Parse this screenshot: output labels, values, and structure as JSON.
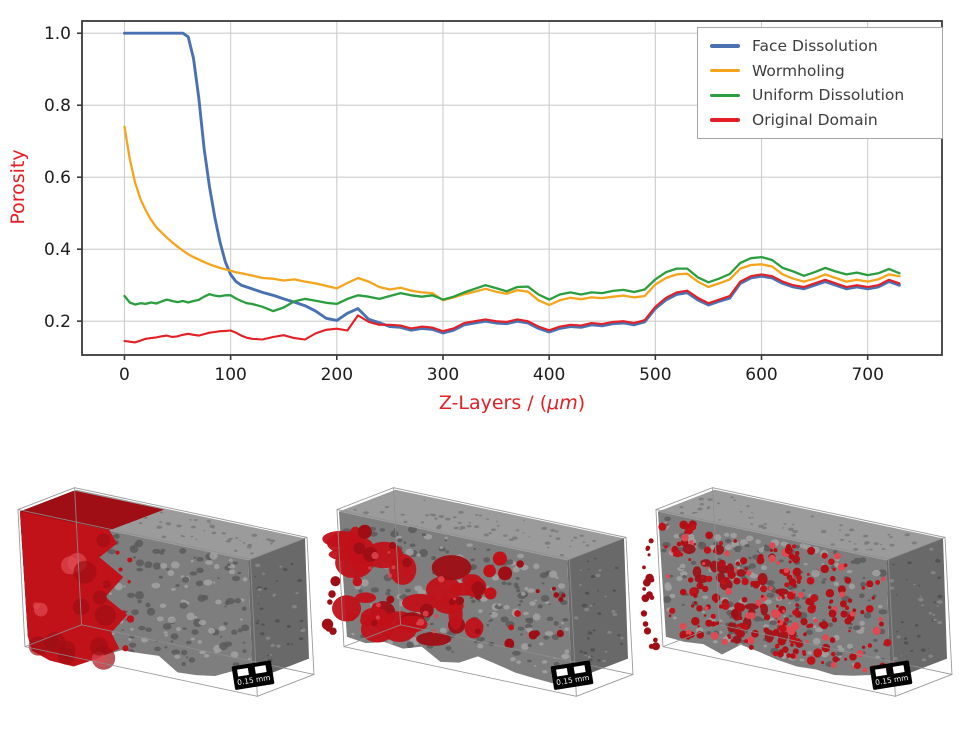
{
  "figure": {
    "description": "Porosity profiles and 3D pore-space renderings for three dissolution regimes"
  },
  "chart_data": {
    "type": "line",
    "title": "",
    "ylabel": "Porosity",
    "xlabel_prefix": "Z-Layers / (",
    "xlabel_italic": "μm",
    "xlabel_suffix": ")",
    "axis_label_color": "#e41f26",
    "xlim": [
      -40,
      770
    ],
    "ylim": [
      0.106,
      1.034
    ],
    "xticks": [
      0,
      100,
      200,
      300,
      400,
      500,
      600,
      700
    ],
    "xtick_labels": [
      "0",
      "100",
      "200",
      "300",
      "400",
      "500",
      "600",
      "700"
    ],
    "yticks": [
      0.2,
      0.4,
      0.6,
      0.8,
      1.0
    ],
    "ytick_labels": [
      "0.2",
      "0.4",
      "0.6",
      "0.8",
      "1.0"
    ],
    "grid": true,
    "legend_position": "upper right",
    "x": [
      0,
      5,
      10,
      15,
      20,
      25,
      30,
      35,
      40,
      45,
      50,
      55,
      60,
      65,
      70,
      75,
      80,
      85,
      90,
      95,
      100,
      105,
      110,
      115,
      120,
      130,
      140,
      150,
      160,
      170,
      180,
      190,
      200,
      210,
      220,
      230,
      240,
      250,
      260,
      270,
      280,
      290,
      300,
      310,
      320,
      330,
      340,
      350,
      360,
      370,
      380,
      390,
      400,
      410,
      420,
      430,
      440,
      450,
      460,
      470,
      480,
      490,
      500,
      510,
      520,
      530,
      540,
      550,
      560,
      570,
      580,
      590,
      600,
      610,
      620,
      630,
      640,
      650,
      660,
      670,
      680,
      690,
      700,
      710,
      720,
      730
    ],
    "series": [
      {
        "name": "Face Dissolution",
        "color": "#4a72b2",
        "values": [
          1.0,
          1.0,
          1.0,
          1.0,
          1.0,
          1.0,
          1.0,
          1.0,
          1.0,
          1.0,
          1.0,
          1.0,
          0.99,
          0.93,
          0.82,
          0.68,
          0.575,
          0.49,
          0.42,
          0.365,
          0.33,
          0.31,
          0.3,
          0.295,
          0.29,
          0.28,
          0.272,
          0.262,
          0.253,
          0.243,
          0.228,
          0.208,
          0.202,
          0.222,
          0.235,
          0.205,
          0.196,
          0.185,
          0.183,
          0.175,
          0.18,
          0.177,
          0.167,
          0.175,
          0.19,
          0.195,
          0.2,
          0.195,
          0.193,
          0.2,
          0.195,
          0.18,
          0.17,
          0.18,
          0.185,
          0.183,
          0.19,
          0.187,
          0.193,
          0.195,
          0.19,
          0.198,
          0.235,
          0.259,
          0.274,
          0.279,
          0.259,
          0.245,
          0.255,
          0.264,
          0.305,
          0.32,
          0.325,
          0.32,
          0.305,
          0.295,
          0.29,
          0.3,
          0.31,
          0.3,
          0.29,
          0.295,
          0.29,
          0.295,
          0.31,
          0.3
        ]
      },
      {
        "name": "Wormholing",
        "color": "#f6a41c",
        "values": [
          0.74,
          0.65,
          0.585,
          0.54,
          0.508,
          0.482,
          0.461,
          0.446,
          0.432,
          0.419,
          0.407,
          0.396,
          0.386,
          0.378,
          0.371,
          0.364,
          0.358,
          0.353,
          0.348,
          0.344,
          0.34,
          0.336,
          0.333,
          0.33,
          0.327,
          0.32,
          0.318,
          0.313,
          0.316,
          0.31,
          0.305,
          0.298,
          0.291,
          0.306,
          0.32,
          0.31,
          0.295,
          0.288,
          0.293,
          0.285,
          0.28,
          0.278,
          0.258,
          0.266,
          0.275,
          0.282,
          0.29,
          0.282,
          0.276,
          0.286,
          0.282,
          0.258,
          0.245,
          0.258,
          0.265,
          0.261,
          0.266,
          0.264,
          0.268,
          0.271,
          0.266,
          0.27,
          0.302,
          0.32,
          0.33,
          0.332,
          0.31,
          0.295,
          0.305,
          0.316,
          0.346,
          0.356,
          0.358,
          0.352,
          0.33,
          0.318,
          0.31,
          0.318,
          0.33,
          0.32,
          0.31,
          0.315,
          0.31,
          0.316,
          0.33,
          0.325
        ]
      },
      {
        "name": "Uniform Dissolution",
        "color": "#2b9e3f",
        "values": [
          0.27,
          0.252,
          0.246,
          0.25,
          0.248,
          0.252,
          0.249,
          0.255,
          0.26,
          0.256,
          0.253,
          0.256,
          0.252,
          0.256,
          0.259,
          0.268,
          0.275,
          0.271,
          0.269,
          0.272,
          0.272,
          0.263,
          0.256,
          0.25,
          0.248,
          0.24,
          0.228,
          0.238,
          0.255,
          0.262,
          0.257,
          0.251,
          0.248,
          0.262,
          0.272,
          0.268,
          0.262,
          0.27,
          0.278,
          0.272,
          0.268,
          0.272,
          0.26,
          0.268,
          0.28,
          0.29,
          0.3,
          0.292,
          0.283,
          0.295,
          0.296,
          0.274,
          0.26,
          0.274,
          0.28,
          0.274,
          0.28,
          0.278,
          0.284,
          0.287,
          0.281,
          0.288,
          0.316,
          0.336,
          0.346,
          0.346,
          0.322,
          0.308,
          0.318,
          0.331,
          0.362,
          0.375,
          0.378,
          0.37,
          0.348,
          0.338,
          0.326,
          0.336,
          0.348,
          0.338,
          0.33,
          0.335,
          0.328,
          0.333,
          0.345,
          0.333
        ]
      },
      {
        "name": "Original Domain",
        "color": "#e41f26",
        "values": [
          0.145,
          0.143,
          0.141,
          0.146,
          0.151,
          0.153,
          0.155,
          0.158,
          0.16,
          0.156,
          0.158,
          0.162,
          0.165,
          0.162,
          0.16,
          0.164,
          0.168,
          0.17,
          0.172,
          0.173,
          0.174,
          0.168,
          0.16,
          0.154,
          0.151,
          0.149,
          0.156,
          0.161,
          0.153,
          0.149,
          0.166,
          0.176,
          0.179,
          0.174,
          0.216,
          0.198,
          0.19,
          0.19,
          0.188,
          0.18,
          0.185,
          0.182,
          0.172,
          0.18,
          0.195,
          0.2,
          0.205,
          0.2,
          0.198,
          0.205,
          0.2,
          0.185,
          0.175,
          0.185,
          0.19,
          0.188,
          0.195,
          0.192,
          0.198,
          0.2,
          0.195,
          0.203,
          0.24,
          0.265,
          0.28,
          0.285,
          0.265,
          0.25,
          0.26,
          0.27,
          0.31,
          0.325,
          0.33,
          0.325,
          0.31,
          0.3,
          0.295,
          0.305,
          0.315,
          0.305,
          0.295,
          0.3,
          0.295,
          0.3,
          0.315,
          0.305
        ]
      }
    ]
  },
  "panels": [
    {
      "name": "face-dissolution-volume",
      "pattern": "face",
      "scale_label": "0.15 mm"
    },
    {
      "name": "wormholing-volume",
      "pattern": "wormhole",
      "scale_label": "0.15 mm"
    },
    {
      "name": "uniform-dissolution-volume",
      "pattern": "uniform",
      "scale_label": "0.15 mm"
    }
  ],
  "colors": {
    "grid": "#cdcdcd",
    "spine": "#3a3a3a",
    "tick_text": "#1d1d1d",
    "block_front": "#7e7e7e",
    "block_top": "#9b9b9b",
    "block_right": "#696969",
    "speckle_dark": "#5a5a5a",
    "speckle_light": "#a2a2a2",
    "wire": "#8f8f8f",
    "red_bright": "#c11119",
    "red_dark": "#8a0d12",
    "red_mid": "#9e0e14",
    "red_highlight": "#df4a52"
  }
}
